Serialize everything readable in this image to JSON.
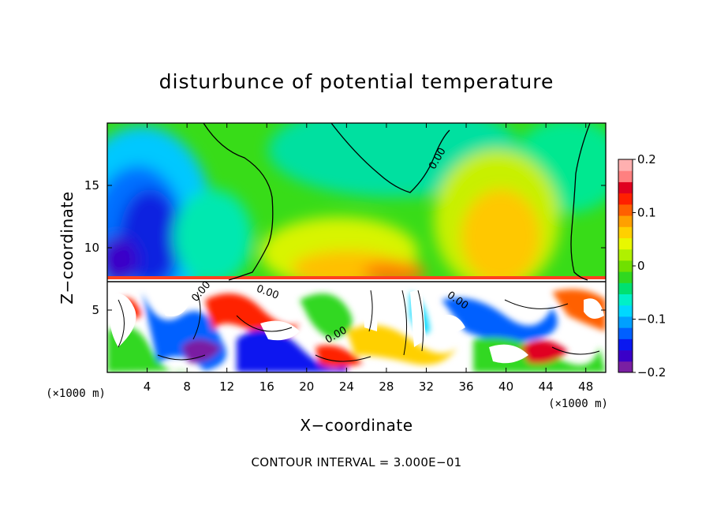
{
  "chart_data": {
    "type": "heatmap",
    "title": "disturbunce of potential temperature",
    "xlabel": "X−coordinate",
    "ylabel": "Z−coordinate",
    "x_unit": "(×1000 m)",
    "z_unit": "(×1000 m)",
    "xlim": [
      0,
      50
    ],
    "ylim": [
      0,
      20
    ],
    "x_ticks": [
      4,
      8,
      12,
      16,
      20,
      24,
      28,
      32,
      36,
      40,
      44,
      48
    ],
    "x_tick_labels": [
      "4",
      "8",
      "12",
      "16",
      "20",
      "24",
      "28",
      "32",
      "36",
      "40",
      "44",
      "48"
    ],
    "y_ticks": [
      5,
      10,
      15
    ],
    "y_tick_labels": [
      "5",
      "10",
      "15"
    ],
    "colorbar": {
      "range": [
        -0.2,
        0.2
      ],
      "ticks": [
        0.2,
        0.1,
        0,
        -0.1,
        -0.2
      ],
      "tick_labels": [
        "0.2",
        "0.1",
        "0",
        "−0.1",
        "−0.2"
      ],
      "colors": [
        "#7a1fa2",
        "#3a00c8",
        "#0a18f0",
        "#0060ff",
        "#00a0ff",
        "#00d8ff",
        "#00f0c8",
        "#00e070",
        "#30d820",
        "#70e000",
        "#b0f000",
        "#e8f800",
        "#ffd000",
        "#ffa000",
        "#ff6000",
        "#ff2000",
        "#e00020",
        "#ff8080",
        "#ffb0b0"
      ]
    },
    "contour_interval_text": "CONTOUR INTERVAL = 3.000E−01",
    "contour_labels": [
      "0.00",
      "0.00",
      "0.00",
      "0.00",
      "0.00"
    ],
    "tropopause_height": 7.3
  }
}
